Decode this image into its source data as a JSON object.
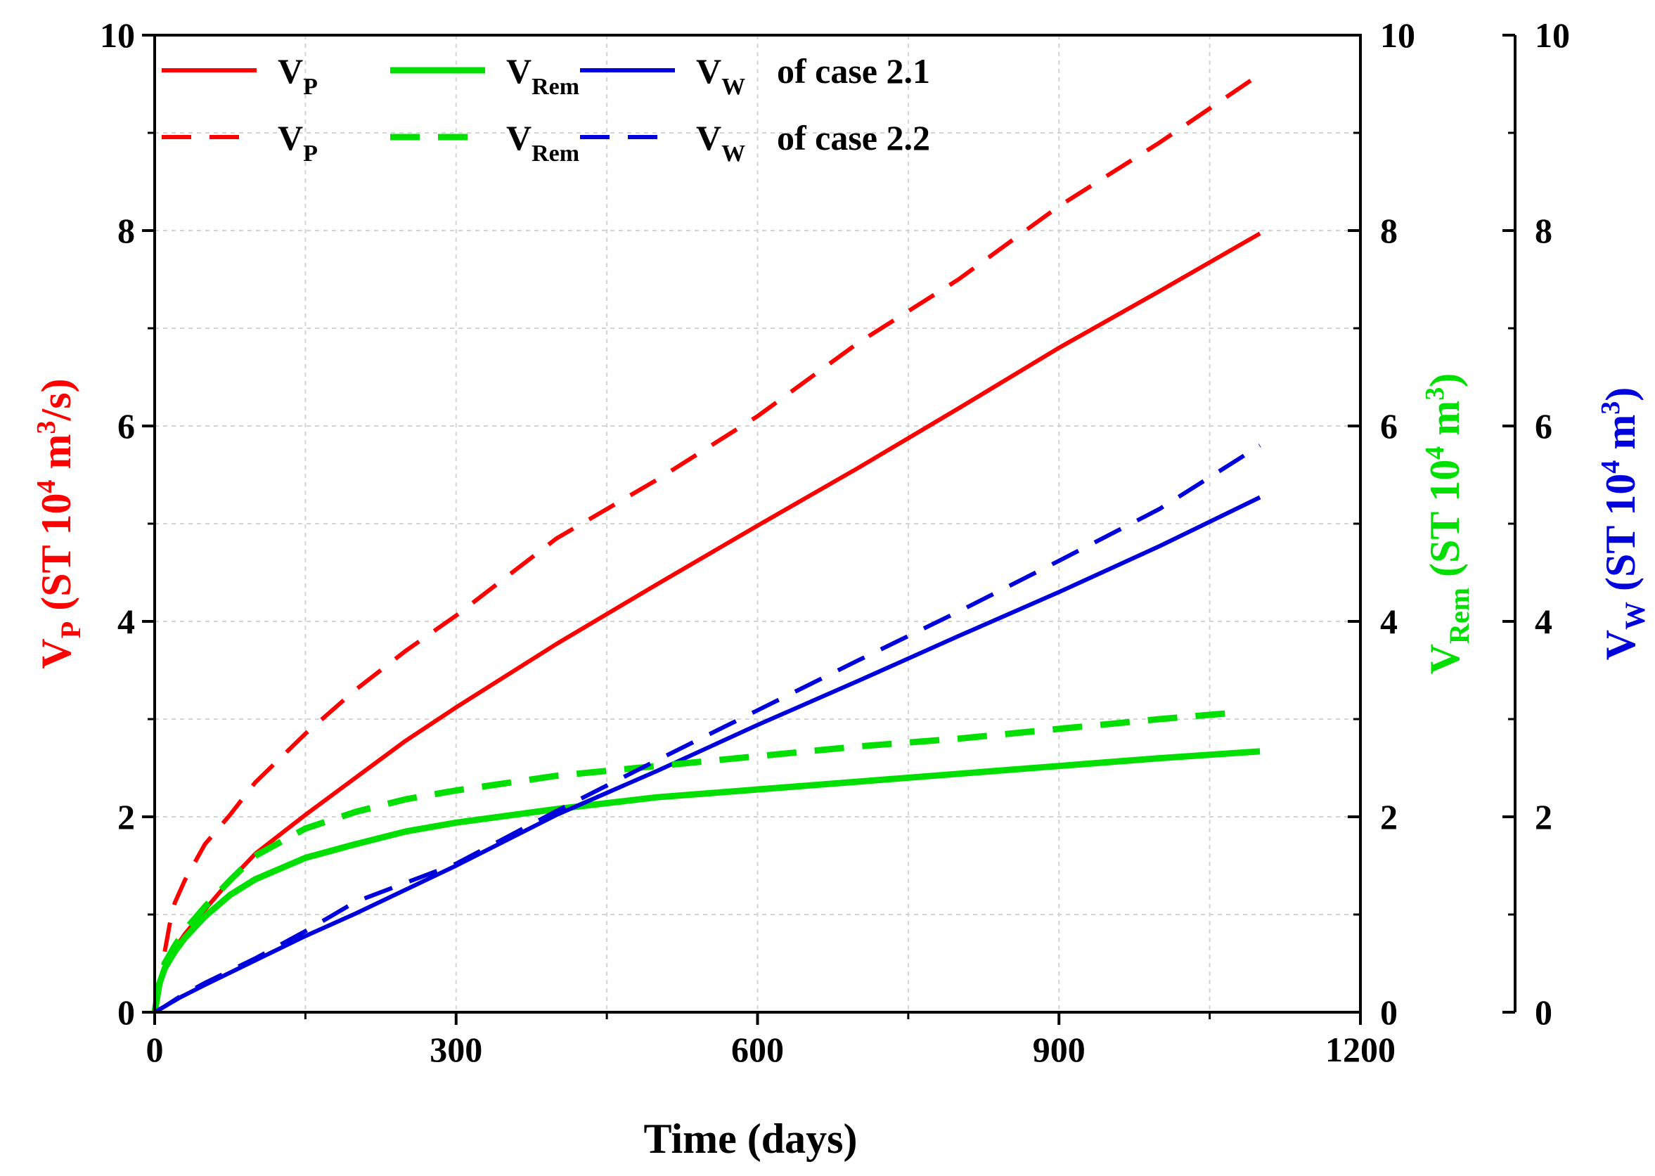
{
  "chart_data": {
    "type": "line",
    "xlabel": "Time (days)",
    "xlim": [
      0,
      1200
    ],
    "xticks": [
      0,
      300,
      600,
      900,
      1200
    ],
    "y_axes": [
      {
        "id": "vp",
        "label_main": "V",
        "label_sub": "P",
        "label_rest": " (ST 10",
        "label_sup": "4",
        "label_unit": " m",
        "label_sup2": "3",
        "label_end": "/s)",
        "color": "#ff0000",
        "ylim": [
          0,
          10
        ],
        "yticks": [
          0,
          2,
          4,
          6,
          8,
          10
        ]
      },
      {
        "id": "vrem",
        "label_main": "V",
        "label_sub": "Rem",
        "label_rest": " (ST 10",
        "label_sup": "4",
        "label_unit": " m",
        "label_sup2": "3",
        "label_end": ")",
        "color": "#00e000",
        "ylim": [
          0,
          10
        ],
        "yticks": [
          0,
          2,
          4,
          6,
          8,
          10
        ]
      },
      {
        "id": "vw",
        "label_main": "V",
        "label_sub": "W",
        "label_rest": " (ST 10",
        "label_sup": "4",
        "label_unit": " m",
        "label_sup2": "3",
        "label_end": ")",
        "color": "#0000dd",
        "ylim": [
          0,
          10
        ],
        "yticks": [
          0,
          2,
          4,
          6,
          8,
          10
        ]
      }
    ],
    "grid": true,
    "legend": {
      "placement": "top-left",
      "rows": [
        {
          "case_text": "of  case 2.1",
          "style": "solid",
          "entries": [
            {
              "main": "V",
              "sub": "P",
              "color": "#ff0000"
            },
            {
              "main": "V",
              "sub": "Rem",
              "color": "#00e000"
            },
            {
              "main": "V",
              "sub": "W",
              "color": "#0000dd"
            }
          ]
        },
        {
          "case_text": "of  case 2.2",
          "style": "dashed",
          "entries": [
            {
              "main": "V",
              "sub": "P",
              "color": "#ff0000"
            },
            {
              "main": "V",
              "sub": "Rem",
              "color": "#00e000"
            },
            {
              "main": "V",
              "sub": "W",
              "color": "#0000dd"
            }
          ]
        }
      ]
    },
    "series": [
      {
        "quantity": "VP",
        "case": "2.1",
        "color": "#ff0000",
        "style": "solid",
        "x": [
          0,
          5,
          10,
          20,
          30,
          50,
          75,
          100,
          150,
          200,
          250,
          300,
          400,
          500,
          600,
          700,
          800,
          900,
          1000,
          1100
        ],
        "y": [
          0,
          0.3,
          0.45,
          0.65,
          0.8,
          1.05,
          1.35,
          1.62,
          2.02,
          2.4,
          2.78,
          3.12,
          3.77,
          4.38,
          4.98,
          5.57,
          6.18,
          6.8,
          7.38,
          7.97
        ]
      },
      {
        "quantity": "VRem",
        "case": "2.1",
        "color": "#00e000",
        "style": "solid",
        "x": [
          0,
          5,
          10,
          20,
          30,
          50,
          75,
          100,
          150,
          200,
          250,
          300,
          400,
          500,
          600,
          700,
          800,
          900,
          1000,
          1100
        ],
        "y": [
          0,
          0.3,
          0.45,
          0.62,
          0.76,
          0.98,
          1.2,
          1.36,
          1.58,
          1.72,
          1.85,
          1.94,
          2.08,
          2.2,
          2.28,
          2.36,
          2.44,
          2.52,
          2.6,
          2.67
        ]
      },
      {
        "quantity": "VW",
        "case": "2.1",
        "color": "#0000dd",
        "style": "solid",
        "x": [
          0,
          10,
          25,
          50,
          100,
          150,
          200,
          300,
          400,
          500,
          600,
          700,
          800,
          900,
          1000,
          1100
        ],
        "y": [
          0,
          0.06,
          0.15,
          0.28,
          0.53,
          0.78,
          1.01,
          1.5,
          2.02,
          2.47,
          2.94,
          3.39,
          3.85,
          4.3,
          4.77,
          5.27
        ]
      },
      {
        "quantity": "VP",
        "case": "2.2",
        "color": "#ff0000",
        "style": "dashed",
        "x": [
          10,
          15,
          20,
          30,
          50,
          75,
          100,
          150,
          200,
          250,
          300,
          400,
          500,
          600,
          700,
          800,
          900,
          1000,
          1100
        ],
        "y": [
          0.62,
          0.9,
          1.12,
          1.35,
          1.72,
          2.02,
          2.35,
          2.85,
          3.3,
          3.7,
          4.06,
          4.85,
          5.45,
          6.1,
          6.85,
          7.5,
          8.25,
          8.9,
          9.6
        ]
      },
      {
        "quantity": "VRem",
        "case": "2.2",
        "color": "#00e000",
        "style": "dashed",
        "x": [
          0,
          5,
          10,
          20,
          30,
          50,
          75,
          100,
          150,
          200,
          250,
          300,
          400,
          500,
          600,
          700,
          800,
          900,
          1000,
          1080
        ],
        "y": [
          0,
          0.32,
          0.5,
          0.68,
          0.84,
          1.08,
          1.35,
          1.6,
          1.88,
          2.05,
          2.18,
          2.27,
          2.42,
          2.52,
          2.62,
          2.72,
          2.8,
          2.9,
          3.0,
          3.07
        ]
      },
      {
        "quantity": "VW",
        "case": "2.2",
        "color": "#0000dd",
        "style": "dashed",
        "x": [
          0,
          10,
          25,
          50,
          100,
          150,
          200,
          300,
          400,
          500,
          600,
          700,
          800,
          900,
          1000,
          1100
        ],
        "y": [
          0,
          0.06,
          0.16,
          0.3,
          0.55,
          0.83,
          1.13,
          1.52,
          2.06,
          2.58,
          3.09,
          3.6,
          4.1,
          4.62,
          5.15,
          5.8
        ]
      }
    ]
  }
}
